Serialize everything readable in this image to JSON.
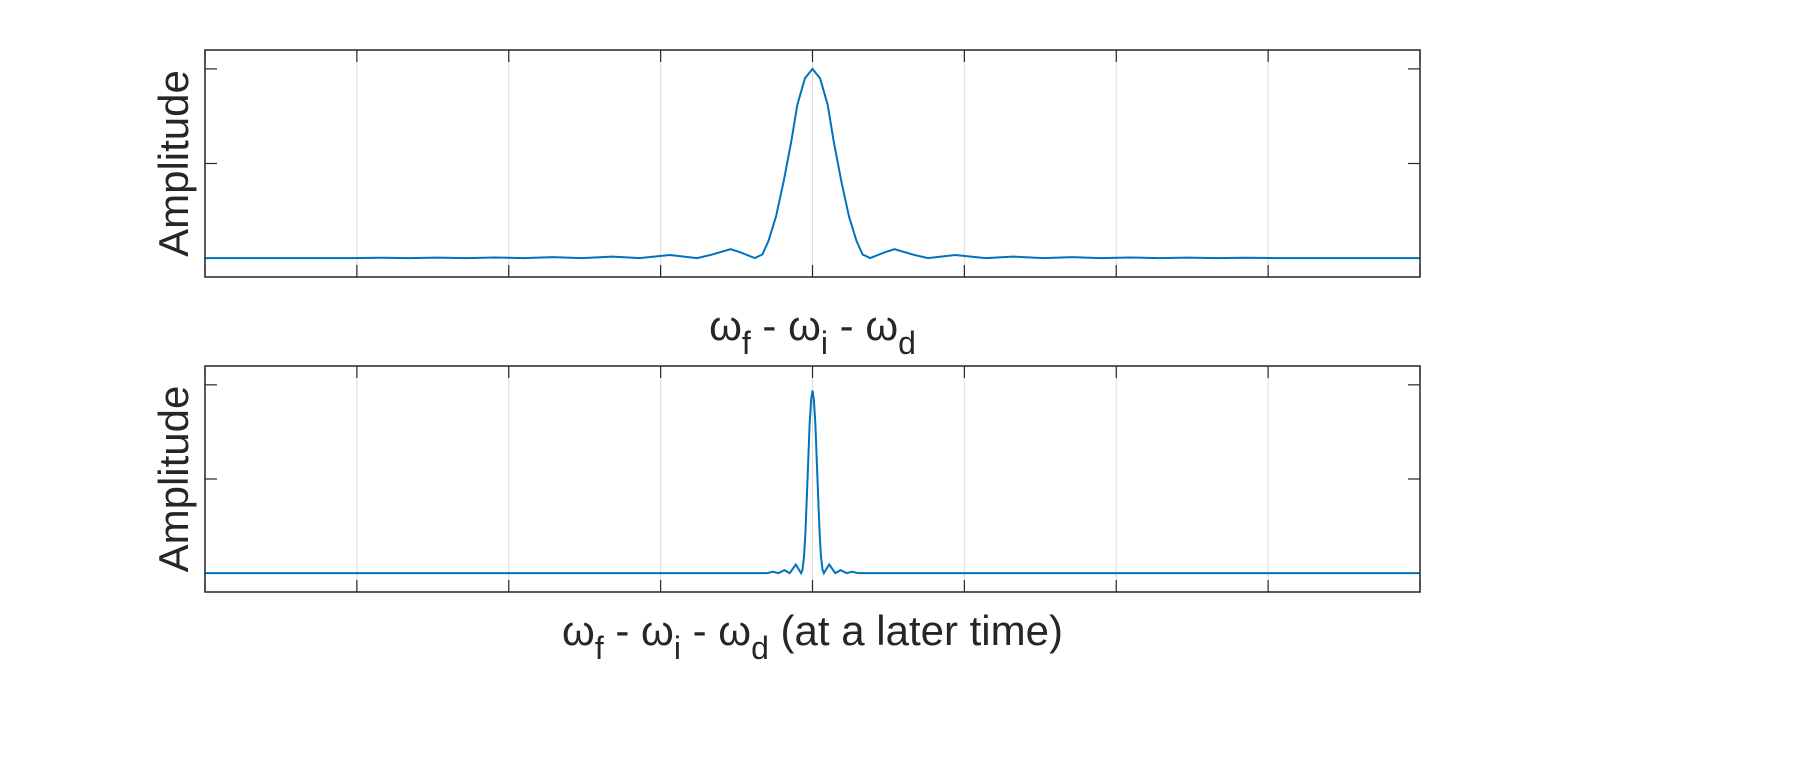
{
  "chart_data": [
    {
      "type": "line",
      "ylabel": "Amplitude",
      "xlabel": [
        {
          "text": "ω"
        },
        {
          "text": "f",
          "sub": true
        },
        {
          "text": " - ω"
        },
        {
          "text": "i",
          "sub": true
        },
        {
          "text": " - ω"
        },
        {
          "text": "d",
          "sub": true
        }
      ],
      "x": [
        -4,
        -3.5,
        -3.04,
        -2.85,
        -2.66,
        -2.47,
        -2.28,
        -2.09,
        -1.9,
        -1.71,
        -1.52,
        -1.32,
        -1.14,
        -0.94,
        -0.76,
        -0.67,
        -0.54,
        -0.48,
        -0.38,
        -0.33,
        -0.29,
        -0.24,
        -0.19,
        -0.14,
        -0.1,
        -0.05,
        0,
        0.05,
        0.1,
        0.14,
        0.19,
        0.24,
        0.29,
        0.33,
        0.38,
        0.48,
        0.54,
        0.67,
        0.76,
        0.94,
        1.14,
        1.32,
        1.52,
        1.71,
        1.9,
        2.09,
        2.28,
        2.47,
        2.66,
        2.85,
        3.04,
        3.5,
        4
      ],
      "values": [
        0,
        0,
        0,
        0.0018,
        0,
        0.0024,
        0,
        0.0033,
        0,
        0.005,
        0,
        0.008,
        0,
        0.016,
        0,
        0.0165,
        0.047,
        0.032,
        0,
        0.019,
        0.09,
        0.221,
        0.405,
        0.615,
        0.81,
        0.95,
        1,
        0.95,
        0.81,
        0.615,
        0.405,
        0.221,
        0.09,
        0.019,
        0,
        0.032,
        0.047,
        0.0165,
        0,
        0.016,
        0,
        0.008,
        0,
        0.005,
        0,
        0.0033,
        0,
        0.0024,
        0,
        0.0018,
        0,
        0,
        0
      ],
      "color": "#0072bd",
      "xlim": [
        -4,
        4
      ],
      "xticks": [
        -4,
        -3,
        -2,
        -1,
        0,
        1,
        2,
        3,
        4
      ],
      "ylim": [
        -0.1,
        1.1
      ],
      "yticks": [
        0,
        0.5,
        1
      ],
      "grid": true,
      "show_tick_labels": false
    },
    {
      "type": "line",
      "ylabel": "Amplitude",
      "xlabel": [
        {
          "text": "ω"
        },
        {
          "text": "f",
          "sub": true
        },
        {
          "text": " - ω"
        },
        {
          "text": "i",
          "sub": true
        },
        {
          "text": " - ω"
        },
        {
          "text": "d",
          "sub": true
        },
        {
          "text": " (at a later time)"
        }
      ],
      "x": [
        -4,
        -1,
        -0.5,
        -0.3,
        -0.26,
        -0.225,
        -0.185,
        -0.15,
        -0.11,
        -0.075,
        -0.066,
        -0.056,
        -0.047,
        -0.038,
        -0.028,
        -0.019,
        -0.009,
        0,
        0.009,
        0.019,
        0.028,
        0.038,
        0.047,
        0.056,
        0.066,
        0.075,
        0.11,
        0.15,
        0.185,
        0.225,
        0.26,
        0.3,
        0.5,
        1,
        4
      ],
      "values": [
        0,
        0,
        0,
        0,
        0.008,
        0,
        0.016,
        0,
        0.046,
        0,
        0.018,
        0.087,
        0.21,
        0.39,
        0.6,
        0.79,
        0.92,
        0.97,
        0.92,
        0.79,
        0.6,
        0.39,
        0.21,
        0.087,
        0.018,
        0,
        0.046,
        0,
        0.016,
        0,
        0.008,
        0,
        0,
        0,
        0
      ],
      "color": "#0072bd",
      "xlim": [
        -4,
        4
      ],
      "xticks": [
        -4,
        -3,
        -2,
        -1,
        0,
        1,
        2,
        3,
        4
      ],
      "ylim": [
        -0.1,
        1.1
      ],
      "yticks": [
        0,
        0.5,
        1
      ],
      "grid": true,
      "show_tick_labels": false
    }
  ]
}
